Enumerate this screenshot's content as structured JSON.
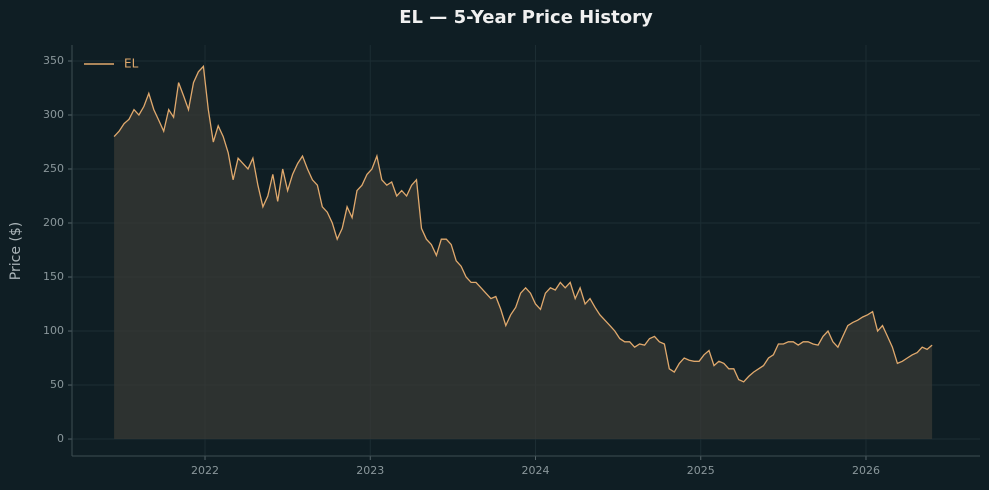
{
  "chart_data": {
    "type": "line",
    "title": "EL — 5-Year Price History",
    "y_label": "Price ($)",
    "x": [
      2021.45,
      2021.48,
      2021.51,
      2021.54,
      2021.57,
      2021.6,
      2021.63,
      2021.66,
      2021.69,
      2021.72,
      2021.75,
      2021.78,
      2021.81,
      2021.84,
      2021.87,
      2021.9,
      2021.93,
      2021.96,
      2021.99,
      2022.02,
      2022.05,
      2022.08,
      2022.11,
      2022.14,
      2022.17,
      2022.2,
      2022.23,
      2022.26,
      2022.29,
      2022.32,
      2022.35,
      2022.38,
      2022.41,
      2022.44,
      2022.47,
      2022.5,
      2022.53,
      2022.56,
      2022.59,
      2022.62,
      2022.65,
      2022.68,
      2022.71,
      2022.74,
      2022.77,
      2022.8,
      2022.83,
      2022.86,
      2022.89,
      2022.92,
      2022.95,
      2022.98,
      2023.01,
      2023.04,
      2023.07,
      2023.1,
      2023.13,
      2023.16,
      2023.19,
      2023.22,
      2023.25,
      2023.28,
      2023.31,
      2023.34,
      2023.37,
      2023.4,
      2023.43,
      2023.46,
      2023.49,
      2023.52,
      2023.55,
      2023.58,
      2023.61,
      2023.64,
      2023.67,
      2023.7,
      2023.73,
      2023.76,
      2023.79,
      2023.82,
      2023.85,
      2023.88,
      2023.91,
      2023.94,
      2023.97,
      2024.0,
      2024.03,
      2024.06,
      2024.09,
      2024.12,
      2024.15,
      2024.18,
      2024.21,
      2024.24,
      2024.27,
      2024.3,
      2024.33,
      2024.36,
      2024.39,
      2024.42,
      2024.45,
      2024.48,
      2024.51,
      2024.54,
      2024.57,
      2024.6,
      2024.63,
      2024.66,
      2024.69,
      2024.72,
      2024.75,
      2024.78,
      2024.81,
      2024.84,
      2024.87,
      2024.9,
      2024.93,
      2024.96,
      2024.99,
      2025.02,
      2025.05,
      2025.08,
      2025.11,
      2025.14,
      2025.17,
      2025.2,
      2025.23,
      2025.26,
      2025.29,
      2025.32,
      2025.35,
      2025.38,
      2025.41,
      2025.44,
      2025.47,
      2025.5,
      2025.53,
      2025.56,
      2025.59,
      2025.62,
      2025.65,
      2025.68,
      2025.71,
      2025.74,
      2025.77,
      2025.8,
      2025.83,
      2025.86,
      2025.89,
      2025.92,
      2025.95,
      2025.98,
      2026.01,
      2026.04,
      2026.07,
      2026.1,
      2026.13,
      2026.16,
      2026.19,
      2026.22,
      2026.25,
      2026.28,
      2026.31,
      2026.34,
      2026.37,
      2026.4
    ],
    "series": [
      {
        "name": "EL",
        "color": "#e0a96d",
        "values": [
          280,
          285,
          292,
          296,
          305,
          300,
          308,
          320,
          305,
          295,
          285,
          305,
          298,
          330,
          318,
          305,
          330,
          340,
          345,
          305,
          275,
          290,
          280,
          265,
          240,
          260,
          255,
          250,
          260,
          235,
          215,
          225,
          245,
          220,
          250,
          230,
          245,
          255,
          262,
          250,
          240,
          235,
          215,
          210,
          200,
          185,
          195,
          215,
          205,
          230,
          235,
          245,
          250,
          262,
          240,
          235,
          238,
          225,
          230,
          225,
          235,
          240,
          195,
          185,
          180,
          170,
          185,
          185,
          180,
          165,
          160,
          150,
          145,
          145,
          140,
          135,
          130,
          132,
          120,
          105,
          115,
          122,
          135,
          140,
          135,
          125,
          120,
          135,
          140,
          138,
          145,
          140,
          145,
          130,
          140,
          125,
          130,
          122,
          115,
          110,
          105,
          100,
          93,
          90,
          90,
          85,
          88,
          87,
          93,
          95,
          90,
          88,
          65,
          62,
          70,
          75,
          73,
          72,
          72,
          78,
          82,
          68,
          72,
          70,
          65,
          65,
          55,
          53,
          58,
          62,
          65,
          68,
          75,
          78,
          88,
          88,
          90,
          90,
          87,
          90,
          90,
          88,
          87,
          95,
          100,
          90,
          85,
          95,
          105,
          108,
          110,
          113,
          115,
          118,
          100,
          105,
          95,
          85,
          70,
          72,
          75,
          78,
          80,
          85,
          83,
          87
        ]
      }
    ],
    "xlim": [
      2021.195,
      2026.69
    ],
    "xticks": [
      2022,
      2023,
      2024,
      2025,
      2026
    ],
    "ylim": [
      -15.7,
      364.8
    ],
    "yticks": [
      0,
      50,
      100,
      150,
      200,
      250,
      300,
      350
    ],
    "grid": true,
    "legend": "upper left"
  }
}
